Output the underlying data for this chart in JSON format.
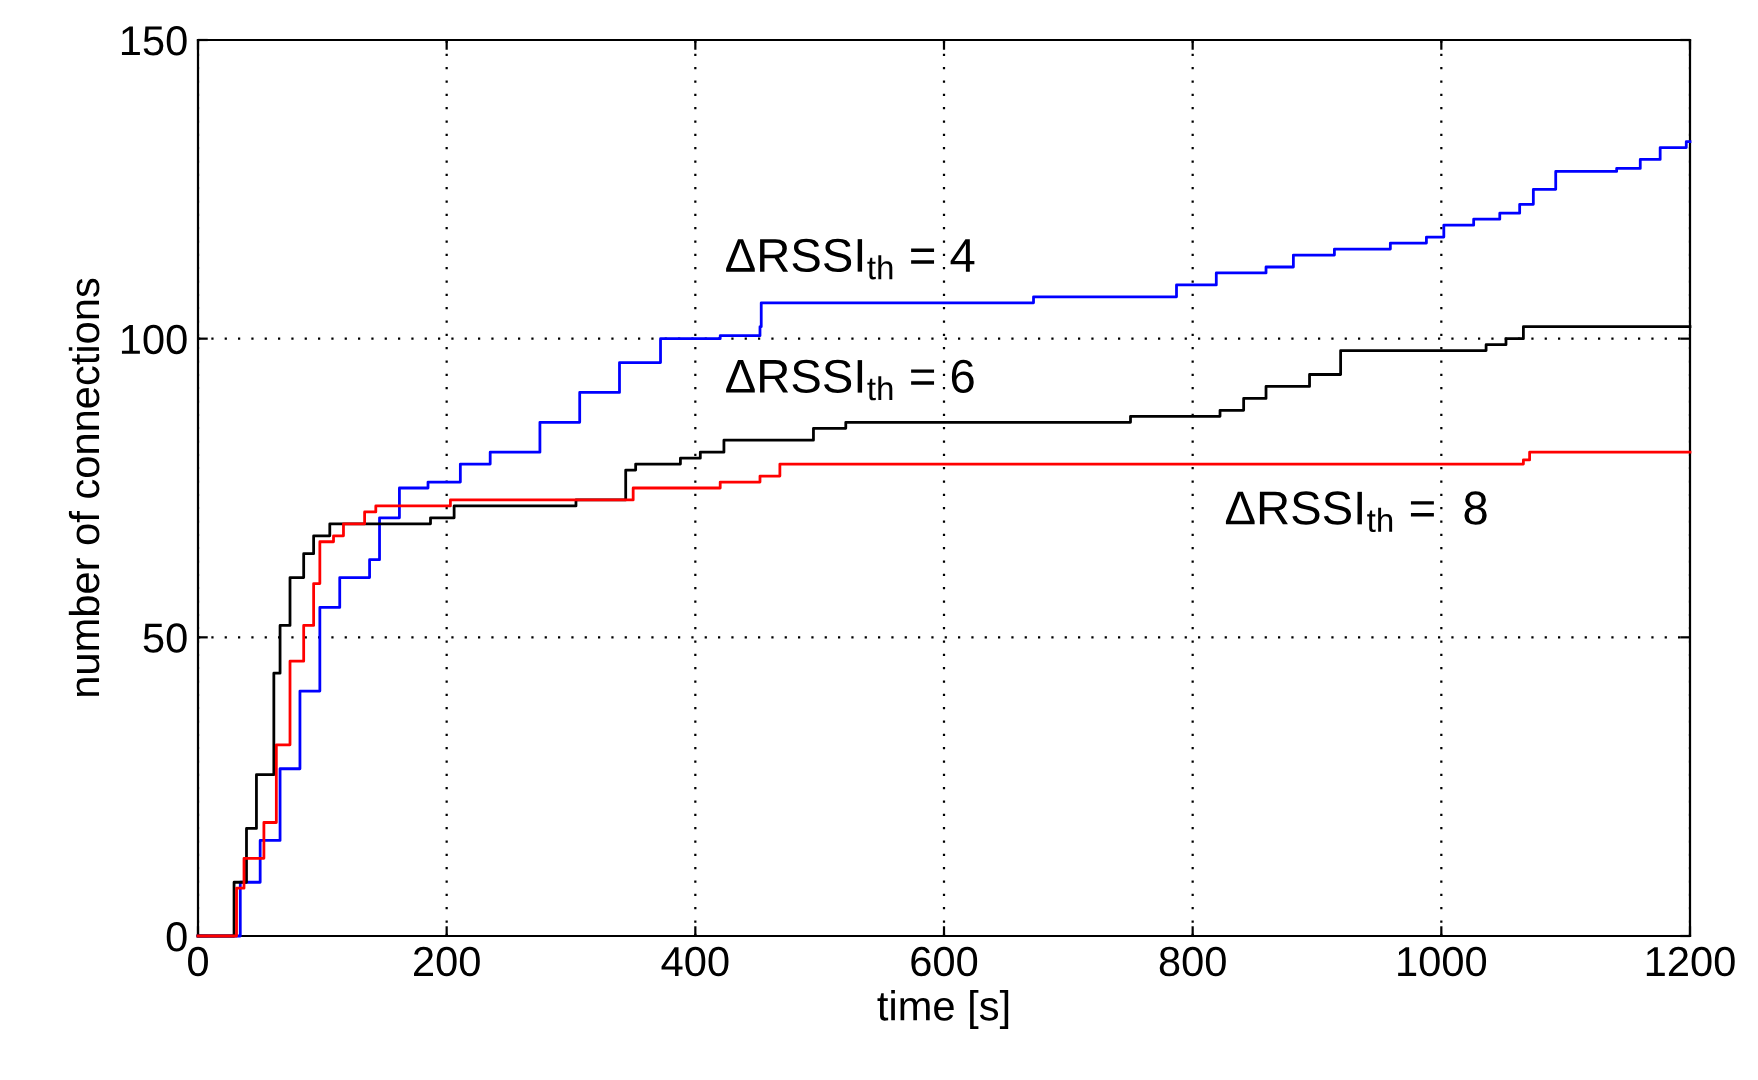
{
  "chart_data": {
    "type": "step",
    "xlabel": "time [s]",
    "ylabel": "number of connections",
    "xlim": [
      0,
      1200
    ],
    "ylim": [
      0,
      150
    ],
    "xticks": [
      0,
      200,
      400,
      600,
      800,
      1000,
      1200
    ],
    "yticks": [
      0,
      50,
      100,
      150
    ],
    "grid": true,
    "series": [
      {
        "color": "#0000ff",
        "x": [
          0,
          26,
          34,
          50,
          66,
          82,
          98,
          114,
          138,
          146,
          162,
          185,
          211,
          235,
          275,
          307,
          339,
          372,
          420,
          452,
          453,
          669,
          672,
          741,
          787,
          819,
          859,
          881,
          914,
          959,
          988,
          1002,
          1026,
          1047,
          1063,
          1074,
          1092,
          1141,
          1160,
          1176,
          1197,
          1200
        ],
        "values": [
          0,
          0,
          9,
          16,
          28,
          41,
          55,
          60,
          63,
          70,
          75,
          76,
          79,
          81,
          86,
          91,
          96,
          100,
          100.5,
          102,
          106,
          106,
          107,
          107,
          109,
          111,
          112,
          114,
          115,
          116,
          117,
          119,
          120,
          121,
          122.5,
          125,
          128,
          128.5,
          130,
          132,
          133,
          133
        ]
      },
      {
        "color": "#000000",
        "x": [
          0,
          21,
          29,
          39,
          47,
          61,
          66,
          74,
          85,
          93,
          106,
          182,
          187,
          206,
          304,
          334,
          344,
          352,
          388,
          404,
          423,
          484,
          495,
          521,
          597,
          750,
          753,
          822,
          841,
          859,
          894,
          919,
          1036,
          1052,
          1066,
          1200
        ],
        "values": [
          0,
          0,
          9,
          18,
          27,
          44,
          52,
          60,
          64,
          67,
          69,
          69,
          70,
          72,
          73,
          73,
          78,
          79,
          80,
          81,
          83,
          83,
          85,
          86,
          86,
          87,
          87,
          88,
          90,
          92,
          94,
          98,
          99,
          100,
          102,
          102
        ]
      },
      {
        "color": "#ff0000",
        "x": [
          0,
          22,
          31,
          37,
          45,
          53,
          63,
          74,
          85,
          93,
          98,
          109,
          117,
          134,
          143,
          203,
          350,
          420,
          452,
          468,
          1066,
          1071,
          1123,
          1200
        ],
        "values": [
          0,
          0,
          8,
          13,
          13,
          19,
          32,
          46,
          52,
          59,
          66,
          67,
          69,
          71,
          72,
          73,
          75,
          76,
          77,
          79,
          79.7,
          81,
          81,
          81
        ]
      }
    ],
    "annotations": [
      "ΔRSSI$_{th}$ = 4",
      "ΔRSSI$_{th}$ = 6",
      "ΔRSSI$_{th}$ =  8"
    ]
  }
}
